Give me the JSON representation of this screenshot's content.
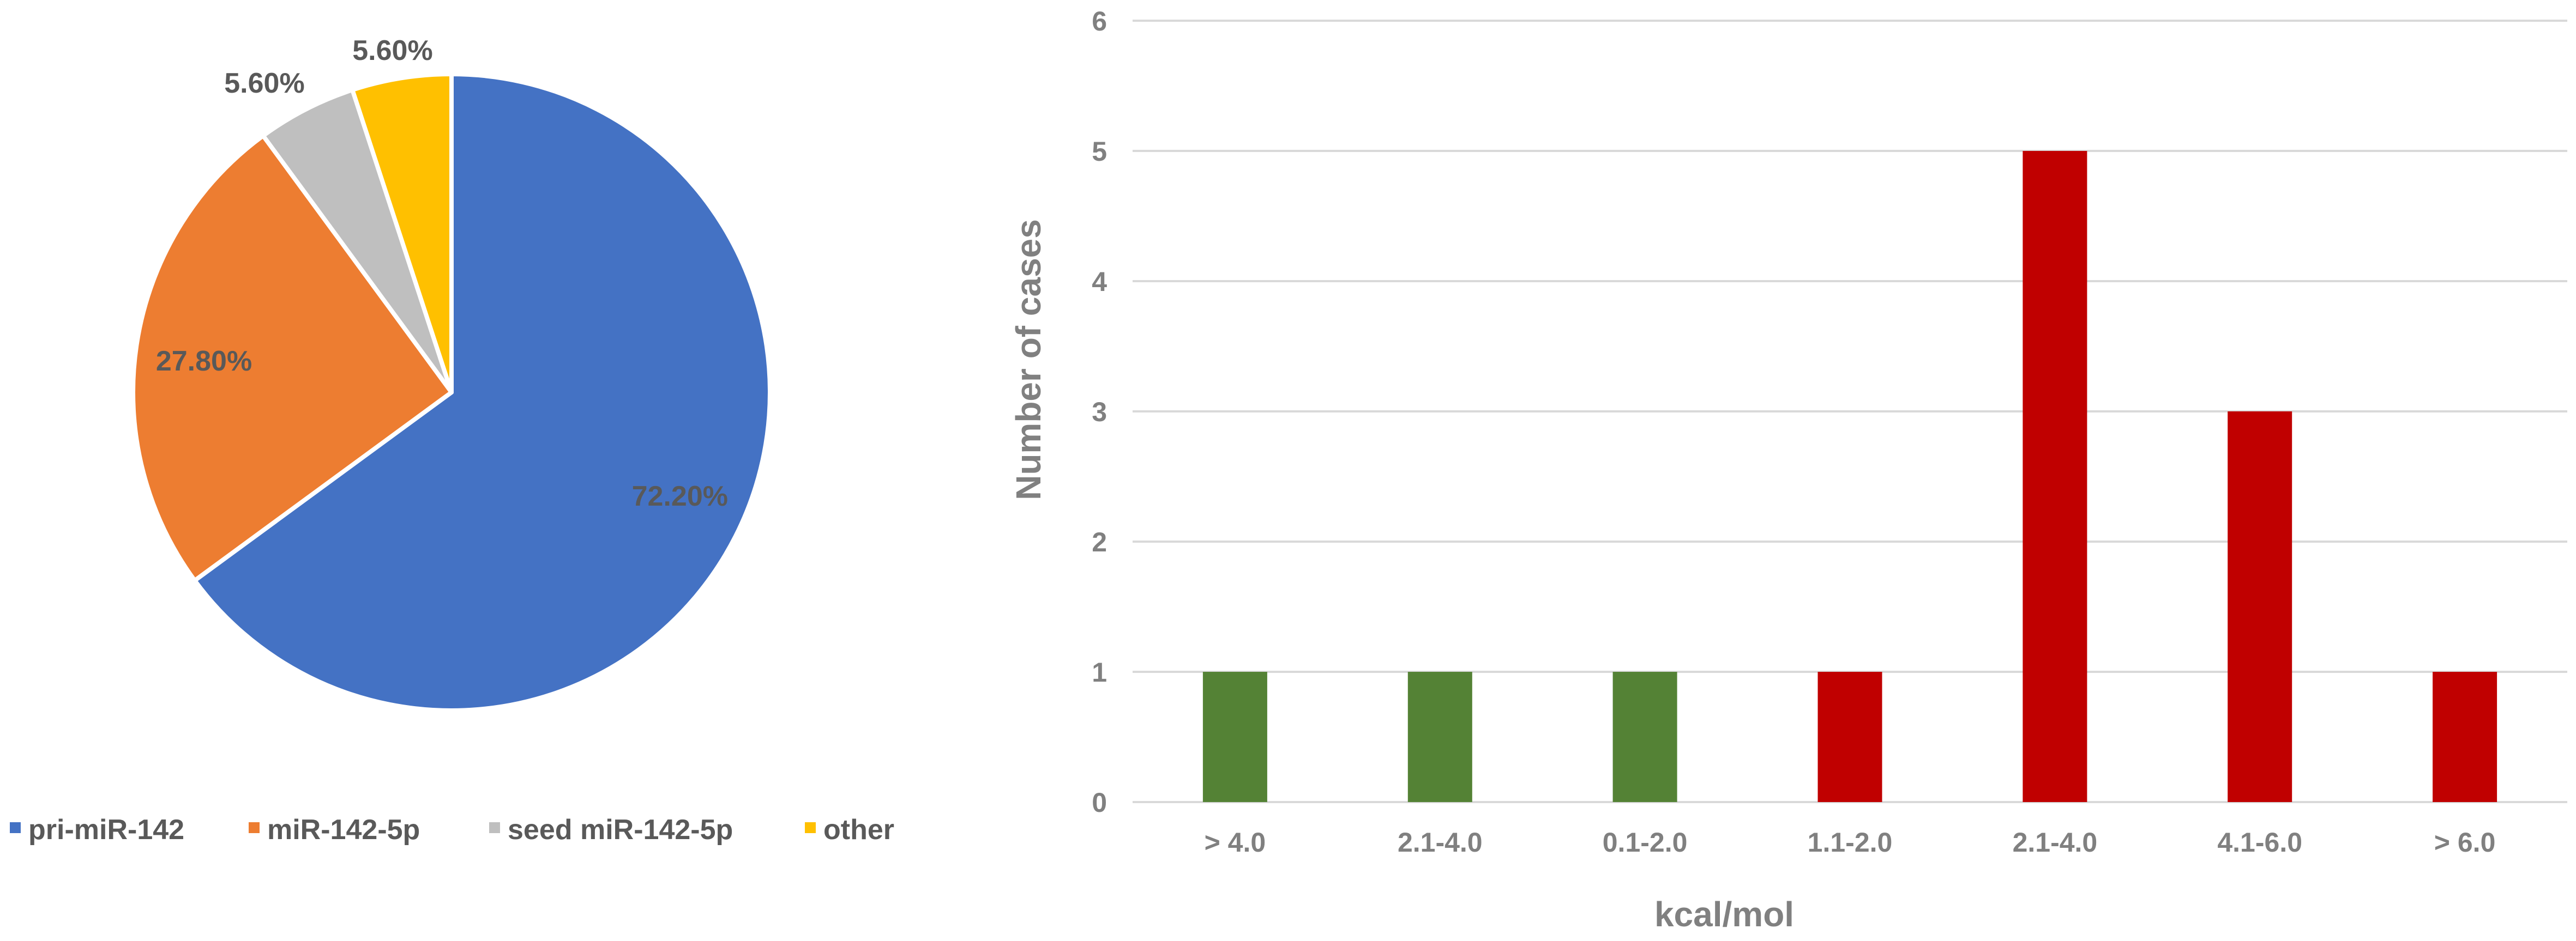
{
  "chart_data": [
    {
      "type": "pie",
      "slices": [
        {
          "label": "pri-miR-142",
          "value": 72.2,
          "display": "72.20%",
          "color": "#4472C4"
        },
        {
          "label": "miR-142-5p",
          "value": 27.8,
          "display": "27.80%",
          "color": "#ED7D31"
        },
        {
          "label": "seed miR-142-5p",
          "value": 5.6,
          "display": "5.60%",
          "color": "#BFBFBF"
        },
        {
          "label": "other",
          "value": 5.6,
          "display": "5.60%",
          "color": "#FFC000"
        }
      ],
      "legend_position": "bottom",
      "label_color": "#595959"
    },
    {
      "type": "bar",
      "categories": [
        "> 4.0",
        "2.1-4.0",
        "0.1-2.0",
        "1.1-2.0",
        "2.1-4.0",
        "4.1-6.0",
        "> 6.0"
      ],
      "values": [
        1,
        1,
        1,
        1,
        5,
        3,
        1
      ],
      "bar_colors": [
        "#548235",
        "#548235",
        "#548235",
        "#C00000",
        "#C00000",
        "#C00000",
        "#C00000"
      ],
      "xlabel": "kcal/mol",
      "ylabel": "Number of cases",
      "ylim": [
        0,
        6
      ],
      "yticks": [
        0,
        1,
        2,
        3,
        4,
        5,
        6
      ],
      "grid": true,
      "grid_color": "#D9D9D9",
      "text_color": "#808080"
    }
  ]
}
